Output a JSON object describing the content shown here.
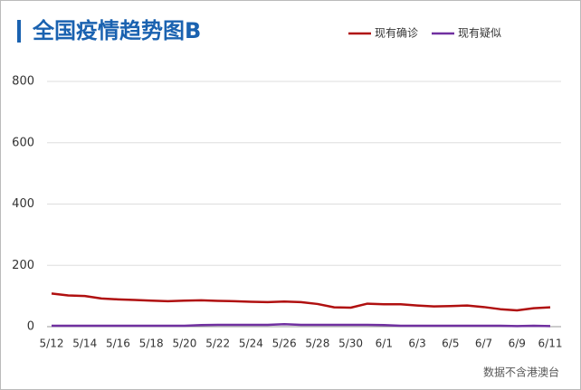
{
  "chart_data": {
    "type": "line",
    "title": "全国疫情趋势图B",
    "note": "数据不含港澳台",
    "categories": [
      "5/12",
      null,
      "5/14",
      null,
      "5/16",
      null,
      "5/18",
      null,
      "5/20",
      null,
      "5/22",
      null,
      "5/24",
      null,
      "5/26",
      null,
      "5/28",
      null,
      "5/30",
      null,
      "6/1",
      null,
      "6/3",
      null,
      "6/5",
      null,
      "6/7",
      null,
      "6/9",
      null,
      "6/11"
    ],
    "series": [
      {
        "name": "现有确诊",
        "color": "#b01010",
        "values": [
          108,
          102,
          100,
          92,
          89,
          87,
          85,
          83,
          85,
          86,
          84,
          83,
          81,
          80,
          82,
          80,
          74,
          63,
          62,
          75,
          73,
          73,
          69,
          66,
          67,
          69,
          64,
          57,
          53,
          60,
          63
        ]
      },
      {
        "name": "现有疑似",
        "color": "#7030a0",
        "values": [
          3,
          3,
          3,
          3,
          3,
          3,
          3,
          3,
          3,
          5,
          6,
          6,
          6,
          6,
          8,
          6,
          6,
          6,
          6,
          6,
          5,
          3,
          3,
          3,
          3,
          3,
          3,
          3,
          2,
          3,
          2
        ]
      }
    ],
    "ylim": [
      0,
      800
    ],
    "yticks": [
      0,
      200,
      400,
      600,
      800
    ],
    "grid": true,
    "legend": "top-right"
  }
}
